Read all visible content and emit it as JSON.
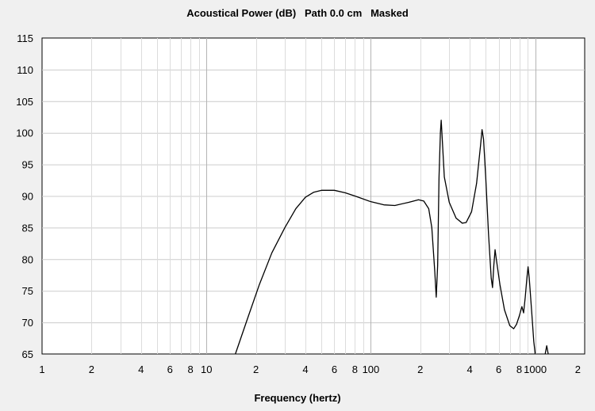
{
  "chart_data": {
    "type": "line",
    "title": "Acoustical Power (dB)   Path 0.0 cm   Masked",
    "xlabel": "Frequency (hertz)",
    "ylabel": "",
    "x_scale": "log",
    "xlim": [
      1,
      2000
    ],
    "ylim": [
      65,
      115
    ],
    "grid": true,
    "y_ticks": [
      65,
      70,
      75,
      80,
      85,
      90,
      95,
      100,
      105,
      110,
      115
    ],
    "x_ticks": [
      {
        "value": 1,
        "label": "1"
      },
      {
        "value": 2,
        "label": "2"
      },
      {
        "value": 4,
        "label": "4"
      },
      {
        "value": 6,
        "label": "6"
      },
      {
        "value": 8,
        "label": "8"
      },
      {
        "value": 10,
        "label": "10"
      },
      {
        "value": 20,
        "label": "2"
      },
      {
        "value": 40,
        "label": "4"
      },
      {
        "value": 60,
        "label": "6"
      },
      {
        "value": 80,
        "label": "8"
      },
      {
        "value": 100,
        "label": "100"
      },
      {
        "value": 200,
        "label": "2"
      },
      {
        "value": 400,
        "label": "4"
      },
      {
        "value": 600,
        "label": "6"
      },
      {
        "value": 800,
        "label": "8"
      },
      {
        "value": 1000,
        "label": "1000"
      },
      {
        "value": 2000,
        "label": "2"
      }
    ],
    "series": [
      {
        "color": "#000000",
        "segments": [
          [
            [
              15,
              65
            ],
            [
              18,
              71
            ],
            [
              21,
              76
            ],
            [
              25,
              81
            ],
            [
              30,
              85
            ],
            [
              35,
              88
            ],
            [
              40,
              89.8
            ],
            [
              45,
              90.6
            ],
            [
              50,
              90.9
            ],
            [
              60,
              90.9
            ],
            [
              70,
              90.5
            ],
            [
              80,
              90
            ],
            [
              100,
              89.1
            ],
            [
              120,
              88.6
            ],
            [
              140,
              88.5
            ],
            [
              170,
              89
            ],
            [
              195,
              89.4
            ],
            [
              210,
              89.2
            ],
            [
              225,
              88
            ],
            [
              235,
              85
            ],
            [
              245,
              78
            ],
            [
              250,
              74
            ],
            [
              255,
              79
            ],
            [
              260,
              93
            ],
            [
              265,
              100
            ],
            [
              268,
              102
            ],
            [
              272,
              99
            ],
            [
              280,
              93
            ],
            [
              300,
              89
            ],
            [
              330,
              86.5
            ],
            [
              360,
              85.7
            ],
            [
              380,
              85.8
            ],
            [
              410,
              87.5
            ],
            [
              440,
              92
            ],
            [
              465,
              98
            ],
            [
              475,
              100.5
            ],
            [
              485,
              99
            ],
            [
              500,
              93
            ],
            [
              520,
              84
            ],
            [
              540,
              77
            ],
            [
              550,
              75.5
            ],
            [
              560,
              79
            ],
            [
              570,
              81.5
            ],
            [
              580,
              80
            ],
            [
              610,
              76
            ],
            [
              650,
              72
            ],
            [
              700,
              69.5
            ],
            [
              740,
              69
            ],
            [
              770,
              69.7
            ],
            [
              800,
              71
            ],
            [
              830,
              72.5
            ],
            [
              850,
              71.5
            ],
            [
              870,
              74
            ],
            [
              890,
              77
            ],
            [
              905,
              78.8
            ],
            [
              920,
              77
            ],
            [
              950,
              72
            ],
            [
              980,
              67
            ],
            [
              1000,
              65
            ]
          ],
          [
            [
              1150,
              65
            ],
            [
              1175,
              66.3
            ],
            [
              1200,
              65
            ]
          ]
        ]
      }
    ]
  }
}
